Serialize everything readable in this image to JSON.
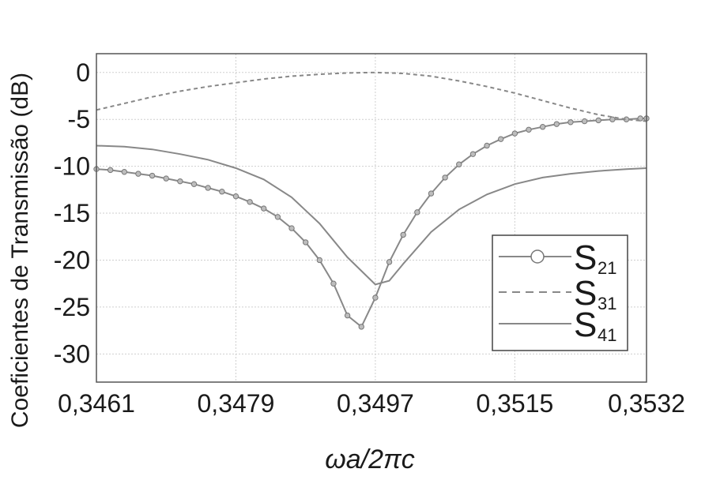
{
  "chart_data": {
    "type": "line",
    "xlabel": "ωa/2πc",
    "ylabel": "Coeficientes de Transmissão (dB)",
    "xlim": [
      0.3461,
      0.3532
    ],
    "ylim": [
      -33,
      2
    ],
    "x_ticks": [
      0.3461,
      0.3479,
      0.3497,
      0.3515,
      0.3532
    ],
    "x_tick_labels": [
      "0,3461",
      "0,3479",
      "0,3497",
      "0,3515",
      "0,3532"
    ],
    "y_ticks": [
      0,
      -5,
      -10,
      -15,
      -20,
      -25,
      -30
    ],
    "y_tick_labels": [
      "0",
      "-5",
      "-10",
      "-15",
      "-20",
      "-25",
      "-30"
    ],
    "grid": true,
    "legend_position": "right",
    "series": [
      {
        "name": "S21",
        "name_main": "S",
        "name_sub": "21",
        "style": "solid-circles",
        "color": "#888888",
        "x": [
          0.3461,
          0.34628,
          0.34646,
          0.34664,
          0.34682,
          0.347,
          0.34718,
          0.34736,
          0.34754,
          0.34772,
          0.3479,
          0.34808,
          0.34826,
          0.34844,
          0.34862,
          0.3488,
          0.34898,
          0.34916,
          0.34934,
          0.34952,
          0.3497,
          0.34988,
          0.35006,
          0.35024,
          0.35042,
          0.3506,
          0.35078,
          0.35096,
          0.35114,
          0.35132,
          0.3515,
          0.35168,
          0.35186,
          0.35204,
          0.35222,
          0.3524,
          0.35258,
          0.35276,
          0.35294,
          0.35312,
          0.3532
        ],
        "y": [
          -10.3,
          -10.4,
          -10.6,
          -10.8,
          -11.0,
          -11.3,
          -11.6,
          -11.9,
          -12.3,
          -12.7,
          -13.2,
          -13.8,
          -14.5,
          -15.4,
          -16.6,
          -18.1,
          -20.0,
          -22.5,
          -25.9,
          -27.1,
          -24.0,
          -20.2,
          -17.3,
          -14.9,
          -12.9,
          -11.2,
          -9.8,
          -8.7,
          -7.8,
          -7.1,
          -6.5,
          -6.1,
          -5.8,
          -5.5,
          -5.3,
          -5.2,
          -5.1,
          -5.0,
          -5.0,
          -4.9,
          -4.9
        ]
      },
      {
        "name": "S31",
        "name_main": "S",
        "name_sub": "31",
        "style": "dashed",
        "color": "#888888",
        "x": [
          0.3461,
          0.34646,
          0.34682,
          0.34718,
          0.34754,
          0.3479,
          0.34826,
          0.34862,
          0.34898,
          0.34934,
          0.3497,
          0.35006,
          0.35042,
          0.35078,
          0.35114,
          0.3515,
          0.35186,
          0.35222,
          0.35258,
          0.35294,
          0.3532
        ],
        "y": [
          -4.0,
          -3.3,
          -2.6,
          -2.0,
          -1.5,
          -1.1,
          -0.7,
          -0.4,
          -0.2,
          -0.05,
          0.0,
          -0.1,
          -0.4,
          -0.9,
          -1.5,
          -2.2,
          -3.0,
          -3.8,
          -4.5,
          -5.0,
          -5.2
        ]
      },
      {
        "name": "S41",
        "name_main": "S",
        "name_sub": "41",
        "style": "solid",
        "color": "#888888",
        "x": [
          0.3461,
          0.34646,
          0.34682,
          0.34718,
          0.34754,
          0.3479,
          0.34826,
          0.34862,
          0.34898,
          0.34934,
          0.3497,
          0.34988,
          0.35006,
          0.35042,
          0.35078,
          0.35114,
          0.3515,
          0.35186,
          0.35222,
          0.35258,
          0.35294,
          0.3532
        ],
        "y": [
          -7.8,
          -7.9,
          -8.2,
          -8.7,
          -9.3,
          -10.2,
          -11.4,
          -13.3,
          -16.1,
          -19.7,
          -22.6,
          -22.2,
          -20.4,
          -17.0,
          -14.6,
          -13.0,
          -11.9,
          -11.2,
          -10.8,
          -10.5,
          -10.3,
          -10.2
        ]
      }
    ]
  }
}
